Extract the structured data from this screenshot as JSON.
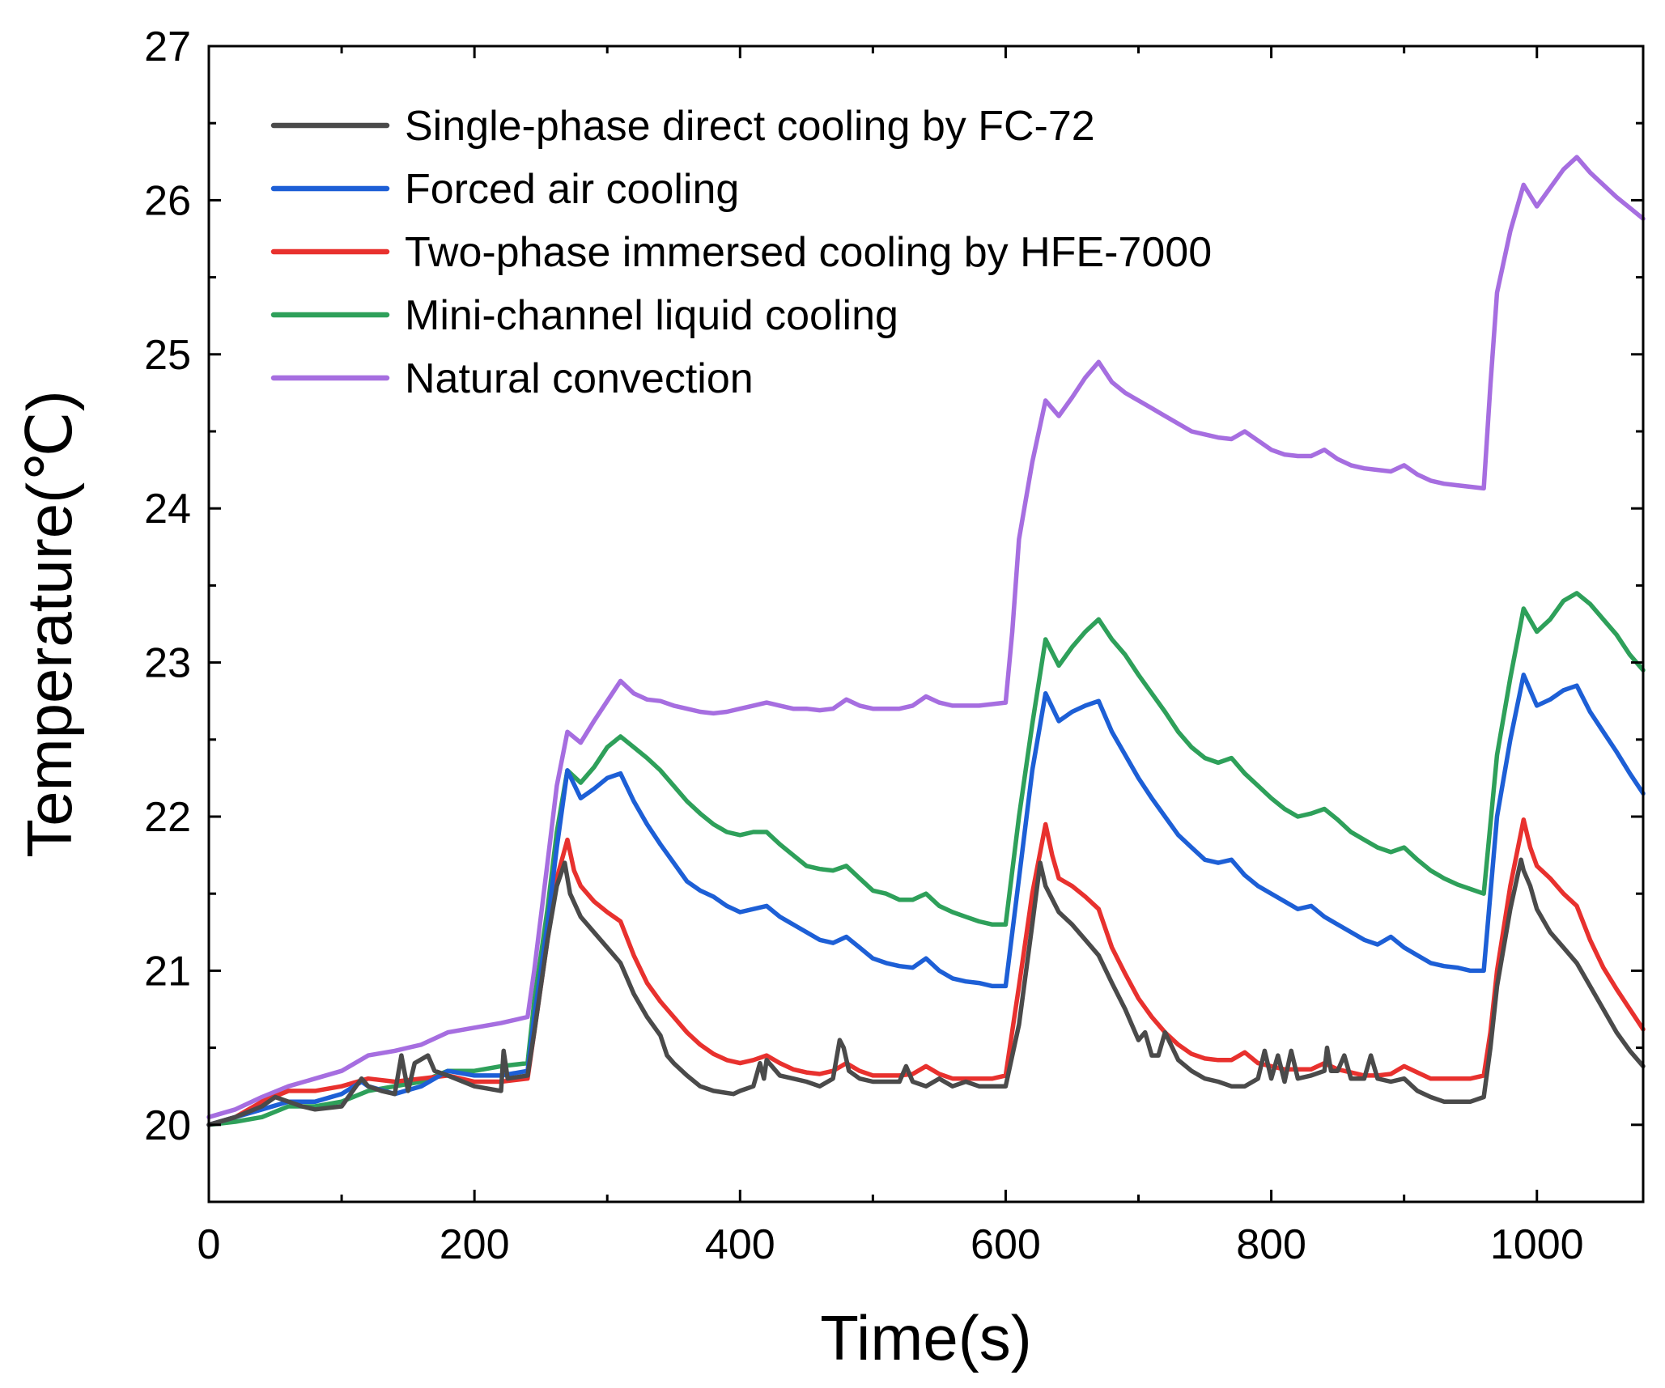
{
  "chart_data": {
    "type": "line",
    "title": "",
    "xlabel": "Time(s)",
    "ylabel": "Temperature(℃)",
    "xlim": [
      0,
      1080
    ],
    "ylim": [
      19.5,
      27
    ],
    "xticks": [
      0,
      200,
      400,
      600,
      800,
      1000
    ],
    "yticks": [
      20,
      21,
      22,
      23,
      24,
      25,
      26,
      27
    ],
    "x_tick_labels": [
      "0",
      "200",
      "400",
      "600",
      "800",
      "1000"
    ],
    "y_tick_labels": [
      "20",
      "21",
      "22",
      "23",
      "24",
      "25",
      "26",
      "27"
    ],
    "legend_position": "top-left",
    "grid": false,
    "series": [
      {
        "name": "Single-phase direct cooling by FC-72",
        "color": "#4a4a4a",
        "x": [
          0,
          20,
          40,
          50,
          60,
          70,
          80,
          100,
          115,
          120,
          130,
          140,
          145,
          150,
          155,
          165,
          170,
          180,
          200,
          220,
          222,
          225,
          240,
          245,
          255,
          262,
          268,
          272,
          280,
          290,
          300,
          310,
          320,
          330,
          340,
          345,
          350,
          360,
          370,
          380,
          395,
          400,
          410,
          415,
          418,
          420,
          430,
          440,
          450,
          460,
          470,
          475,
          478,
          482,
          490,
          500,
          520,
          525,
          530,
          540,
          550,
          560,
          570,
          580,
          590,
          600,
          610,
          620,
          626,
          630,
          640,
          650,
          660,
          670,
          680,
          690,
          700,
          705,
          710,
          715,
          720,
          730,
          740,
          750,
          760,
          770,
          780,
          790,
          795,
          800,
          805,
          810,
          815,
          820,
          830,
          840,
          842,
          845,
          850,
          855,
          860,
          870,
          875,
          880,
          890,
          900,
          910,
          920,
          930,
          940,
          950,
          960,
          965,
          970,
          980,
          988,
          990,
          995,
          1000,
          1010,
          1020,
          1030,
          1040,
          1050,
          1060,
          1070,
          1080
        ],
        "values": [
          20.0,
          20.05,
          20.12,
          20.18,
          20.15,
          20.12,
          20.1,
          20.12,
          20.3,
          20.25,
          20.22,
          20.2,
          20.45,
          20.22,
          20.4,
          20.45,
          20.35,
          20.32,
          20.25,
          20.22,
          20.48,
          20.3,
          20.32,
          20.6,
          21.2,
          21.55,
          21.7,
          21.5,
          21.35,
          21.25,
          21.15,
          21.05,
          20.85,
          20.7,
          20.58,
          20.45,
          20.4,
          20.32,
          20.25,
          20.22,
          20.2,
          20.22,
          20.25,
          20.4,
          20.3,
          20.42,
          20.32,
          20.3,
          20.28,
          20.25,
          20.3,
          20.55,
          20.5,
          20.35,
          20.3,
          20.28,
          20.28,
          20.38,
          20.28,
          20.25,
          20.3,
          20.25,
          20.28,
          20.25,
          20.25,
          20.25,
          20.65,
          21.3,
          21.7,
          21.55,
          21.38,
          21.3,
          21.2,
          21.1,
          20.92,
          20.75,
          20.55,
          20.6,
          20.45,
          20.45,
          20.6,
          20.42,
          20.35,
          20.3,
          20.28,
          20.25,
          20.25,
          20.3,
          20.48,
          20.3,
          20.45,
          20.28,
          20.48,
          20.3,
          20.32,
          20.35,
          20.5,
          20.35,
          20.35,
          20.45,
          20.3,
          20.3,
          20.45,
          20.3,
          20.28,
          20.3,
          20.22,
          20.18,
          20.15,
          20.15,
          20.15,
          20.18,
          20.5,
          20.9,
          21.4,
          21.72,
          21.65,
          21.55,
          21.4,
          21.25,
          21.15,
          21.05,
          20.9,
          20.75,
          20.6,
          20.48,
          20.38
        ]
      },
      {
        "name": "Forced air cooling",
        "color": "#1d5fd6",
        "x": [
          0,
          20,
          40,
          60,
          80,
          100,
          115,
          120,
          140,
          160,
          180,
          200,
          220,
          240,
          245,
          255,
          262,
          270,
          280,
          290,
          300,
          310,
          320,
          330,
          340,
          350,
          360,
          370,
          380,
          390,
          400,
          410,
          420,
          430,
          440,
          450,
          460,
          470,
          480,
          490,
          500,
          510,
          520,
          530,
          540,
          550,
          560,
          570,
          580,
          590,
          600,
          610,
          620,
          630,
          640,
          650,
          660,
          670,
          680,
          690,
          700,
          710,
          720,
          730,
          740,
          750,
          760,
          770,
          780,
          790,
          800,
          810,
          820,
          830,
          840,
          850,
          860,
          870,
          880,
          890,
          900,
          910,
          920,
          930,
          940,
          950,
          960,
          965,
          970,
          980,
          990,
          1000,
          1010,
          1020,
          1030,
          1040,
          1050,
          1060,
          1070,
          1080
        ],
        "values": [
          20.0,
          20.05,
          20.1,
          20.15,
          20.15,
          20.2,
          20.28,
          20.25,
          20.2,
          20.25,
          20.35,
          20.32,
          20.32,
          20.35,
          20.7,
          21.3,
          21.8,
          22.3,
          22.12,
          22.18,
          22.25,
          22.28,
          22.1,
          21.95,
          21.82,
          21.7,
          21.58,
          21.52,
          21.48,
          21.42,
          21.38,
          21.4,
          21.42,
          21.35,
          21.3,
          21.25,
          21.2,
          21.18,
          21.22,
          21.15,
          21.08,
          21.05,
          21.03,
          21.02,
          21.08,
          21.0,
          20.95,
          20.93,
          20.92,
          20.9,
          20.9,
          21.6,
          22.3,
          22.8,
          22.62,
          22.68,
          22.72,
          22.75,
          22.55,
          22.4,
          22.25,
          22.12,
          22.0,
          21.88,
          21.8,
          21.72,
          21.7,
          21.72,
          21.62,
          21.55,
          21.5,
          21.45,
          21.4,
          21.42,
          21.35,
          21.3,
          21.25,
          21.2,
          21.17,
          21.22,
          21.15,
          21.1,
          21.05,
          21.03,
          21.02,
          21.0,
          21.0,
          21.5,
          22.0,
          22.5,
          22.92,
          22.72,
          22.76,
          22.82,
          22.85,
          22.68,
          22.55,
          22.42,
          22.28,
          22.15
        ]
      },
      {
        "name": "Two-phase immersed cooling by HFE-7000",
        "color": "#e8312e",
        "x": [
          0,
          20,
          40,
          60,
          80,
          100,
          120,
          140,
          160,
          180,
          200,
          220,
          240,
          245,
          255,
          262,
          270,
          275,
          280,
          290,
          300,
          310,
          320,
          330,
          340,
          350,
          360,
          370,
          380,
          390,
          400,
          410,
          420,
          430,
          440,
          450,
          460,
          470,
          480,
          490,
          500,
          510,
          520,
          530,
          540,
          550,
          560,
          570,
          580,
          590,
          600,
          610,
          620,
          630,
          635,
          640,
          650,
          660,
          670,
          680,
          690,
          700,
          710,
          720,
          730,
          740,
          750,
          760,
          770,
          780,
          790,
          800,
          810,
          820,
          830,
          840,
          850,
          860,
          870,
          880,
          890,
          900,
          910,
          920,
          930,
          940,
          950,
          960,
          965,
          970,
          980,
          990,
          995,
          1000,
          1010,
          1020,
          1030,
          1040,
          1050,
          1060,
          1070,
          1080
        ],
        "values": [
          20.0,
          20.05,
          20.15,
          20.22,
          20.22,
          20.25,
          20.3,
          20.28,
          20.3,
          20.32,
          20.28,
          20.28,
          20.3,
          20.6,
          21.2,
          21.6,
          21.85,
          21.65,
          21.55,
          21.45,
          21.38,
          21.32,
          21.1,
          20.92,
          20.8,
          20.7,
          20.6,
          20.52,
          20.46,
          20.42,
          20.4,
          20.42,
          20.45,
          20.4,
          20.36,
          20.34,
          20.33,
          20.35,
          20.4,
          20.35,
          20.32,
          20.32,
          20.32,
          20.33,
          20.38,
          20.33,
          20.3,
          20.3,
          20.3,
          20.3,
          20.32,
          20.9,
          21.5,
          21.95,
          21.75,
          21.6,
          21.55,
          21.48,
          21.4,
          21.15,
          20.98,
          20.82,
          20.7,
          20.6,
          20.52,
          20.46,
          20.43,
          20.42,
          20.42,
          20.47,
          20.4,
          20.38,
          20.36,
          20.36,
          20.36,
          20.4,
          20.36,
          20.34,
          20.32,
          20.32,
          20.33,
          20.38,
          20.34,
          20.3,
          20.3,
          20.3,
          20.3,
          20.32,
          20.6,
          21.0,
          21.55,
          21.98,
          21.8,
          21.68,
          21.6,
          21.5,
          21.42,
          21.2,
          21.02,
          20.88,
          20.75,
          20.62
        ]
      },
      {
        "name": "Mini-channel liquid cooling",
        "color": "#2ea05a",
        "x": [
          0,
          20,
          40,
          60,
          80,
          100,
          120,
          140,
          160,
          180,
          200,
          220,
          240,
          245,
          255,
          262,
          270,
          280,
          290,
          300,
          310,
          320,
          330,
          340,
          350,
          360,
          370,
          380,
          390,
          400,
          410,
          420,
          430,
          440,
          450,
          460,
          470,
          480,
          490,
          500,
          510,
          520,
          530,
          540,
          550,
          560,
          570,
          580,
          590,
          600,
          610,
          620,
          630,
          640,
          650,
          660,
          670,
          680,
          690,
          700,
          710,
          720,
          730,
          740,
          750,
          760,
          770,
          780,
          790,
          800,
          810,
          820,
          830,
          840,
          850,
          860,
          870,
          880,
          890,
          900,
          910,
          920,
          930,
          940,
          950,
          960,
          965,
          970,
          980,
          990,
          1000,
          1010,
          1020,
          1030,
          1040,
          1050,
          1060,
          1070,
          1080
        ],
        "values": [
          20.0,
          20.02,
          20.05,
          20.12,
          20.12,
          20.15,
          20.22,
          20.25,
          20.28,
          20.35,
          20.35,
          20.38,
          20.4,
          20.8,
          21.4,
          21.9,
          22.3,
          22.22,
          22.32,
          22.45,
          22.52,
          22.45,
          22.38,
          22.3,
          22.2,
          22.1,
          22.02,
          21.95,
          21.9,
          21.88,
          21.9,
          21.9,
          21.82,
          21.75,
          21.68,
          21.66,
          21.65,
          21.68,
          21.6,
          21.52,
          21.5,
          21.46,
          21.46,
          21.5,
          21.42,
          21.38,
          21.35,
          21.32,
          21.3,
          21.3,
          22.0,
          22.6,
          23.15,
          22.98,
          23.1,
          23.2,
          23.28,
          23.15,
          23.05,
          22.92,
          22.8,
          22.68,
          22.55,
          22.45,
          22.38,
          22.35,
          22.38,
          22.28,
          22.2,
          22.12,
          22.05,
          22.0,
          22.02,
          22.05,
          21.98,
          21.9,
          21.85,
          21.8,
          21.77,
          21.8,
          21.72,
          21.65,
          21.6,
          21.56,
          21.53,
          21.5,
          21.95,
          22.4,
          22.9,
          23.35,
          23.2,
          23.28,
          23.4,
          23.45,
          23.38,
          23.28,
          23.18,
          23.05,
          22.95
        ]
      },
      {
        "name": "Natural convection",
        "color": "#a66ee0",
        "x": [
          0,
          20,
          40,
          60,
          80,
          100,
          120,
          140,
          160,
          180,
          200,
          220,
          240,
          245,
          255,
          262,
          270,
          280,
          290,
          300,
          310,
          320,
          330,
          340,
          350,
          360,
          370,
          380,
          390,
          400,
          410,
          420,
          430,
          440,
          450,
          460,
          470,
          480,
          490,
          500,
          510,
          520,
          530,
          540,
          550,
          560,
          570,
          580,
          590,
          600,
          605,
          610,
          620,
          630,
          640,
          650,
          660,
          670,
          680,
          690,
          700,
          710,
          720,
          730,
          740,
          750,
          760,
          770,
          780,
          790,
          800,
          810,
          820,
          830,
          840,
          850,
          860,
          870,
          880,
          890,
          900,
          910,
          920,
          930,
          940,
          950,
          960,
          965,
          970,
          980,
          990,
          1000,
          1010,
          1020,
          1030,
          1040,
          1050,
          1060,
          1070,
          1080
        ],
        "values": [
          20.05,
          20.1,
          20.18,
          20.25,
          20.3,
          20.35,
          20.45,
          20.48,
          20.52,
          20.6,
          20.63,
          20.66,
          20.7,
          21.0,
          21.7,
          22.2,
          22.55,
          22.48,
          22.62,
          22.75,
          22.88,
          22.8,
          22.76,
          22.75,
          22.72,
          22.7,
          22.68,
          22.67,
          22.68,
          22.7,
          22.72,
          22.74,
          22.72,
          22.7,
          22.7,
          22.69,
          22.7,
          22.76,
          22.72,
          22.7,
          22.7,
          22.7,
          22.72,
          22.78,
          22.74,
          22.72,
          22.72,
          22.72,
          22.73,
          22.74,
          23.2,
          23.8,
          24.3,
          24.7,
          24.6,
          24.72,
          24.85,
          24.95,
          24.82,
          24.75,
          24.7,
          24.65,
          24.6,
          24.55,
          24.5,
          24.48,
          24.46,
          24.45,
          24.5,
          24.44,
          24.38,
          24.35,
          24.34,
          24.34,
          24.38,
          24.32,
          24.28,
          24.26,
          24.25,
          24.24,
          24.28,
          24.22,
          24.18,
          24.16,
          24.15,
          24.14,
          24.13,
          24.8,
          25.4,
          25.8,
          26.1,
          25.96,
          26.08,
          26.2,
          26.28,
          26.18,
          26.1,
          26.02,
          25.95,
          25.88
        ]
      }
    ]
  }
}
